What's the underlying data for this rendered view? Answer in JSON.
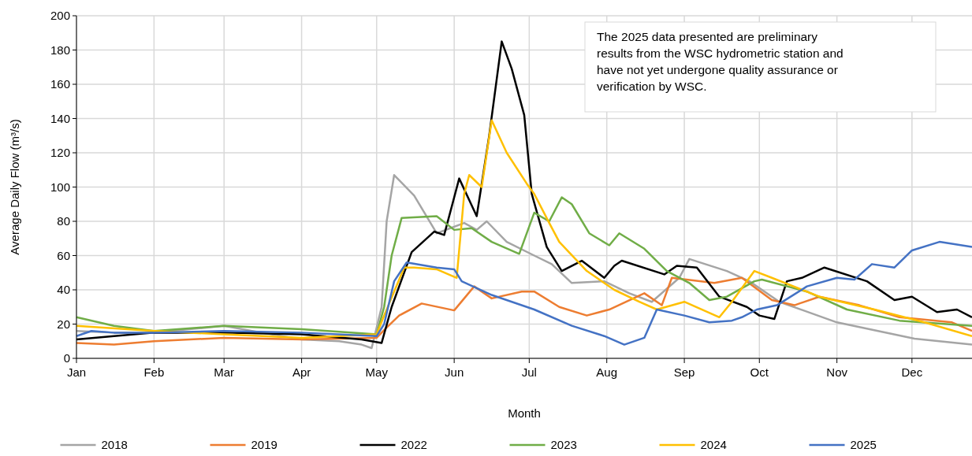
{
  "chart_data": {
    "type": "line",
    "xlabel": "Month",
    "ylabel": "Average Daily Flow (m³/s)",
    "xlim": [
      "--01-01",
      "--12-25"
    ],
    "ylim": [
      0,
      200
    ],
    "xticks": [
      {
        "value": "--01-01",
        "label": "Jan"
      },
      {
        "value": "--02-01",
        "label": "Feb"
      },
      {
        "value": "--03-01",
        "label": "Mar"
      },
      {
        "value": "--04-01",
        "label": "Apr"
      },
      {
        "value": "--05-01",
        "label": "May"
      },
      {
        "value": "--06-01",
        "label": "Jun"
      },
      {
        "value": "--07-01",
        "label": "Jul"
      },
      {
        "value": "--08-01",
        "label": "Aug"
      },
      {
        "value": "--09-01",
        "label": "Sep"
      },
      {
        "value": "--10-01",
        "label": "Oct"
      },
      {
        "value": "--11-01",
        "label": "Nov"
      },
      {
        "value": "--12-01",
        "label": "Dec"
      }
    ],
    "yticks": [
      0,
      20,
      40,
      60,
      80,
      100,
      120,
      140,
      160,
      180,
      200
    ],
    "grid": true,
    "legend": "bottom",
    "marker": "none",
    "line_style": "solid",
    "annotations": [
      "The 2025 data presented are preliminary results from the WSC hydrometric station and have not yet undergone quality assurance or verification by WSC."
    ],
    "series": [
      {
        "name": "2018",
        "color": "#a5a5a5",
        "x": [
          "--01-01",
          "--01-16",
          "--02-01",
          "--02-15",
          "--03-01",
          "--03-16",
          "--04-01",
          "--04-16",
          "--04-25",
          "--04-29",
          "--05-03",
          "--05-05",
          "--05-08",
          "--05-16",
          "--05-25",
          "--06-05",
          "--06-10",
          "--06-14",
          "--06-22",
          "--07-03",
          "--07-10",
          "--07-18",
          "--07-31",
          "--08-10",
          "--08-19",
          "--08-30",
          "--09-03",
          "--09-18",
          "--09-27",
          "--10-09",
          "--11-01",
          "--12-02",
          "--12-25"
        ],
        "values": [
          16,
          15,
          15,
          17,
          19,
          15,
          11,
          10,
          8,
          6,
          30,
          80,
          107,
          95,
          73,
          79,
          75,
          80,
          68,
          60,
          55,
          44,
          45,
          38,
          33,
          47,
          58,
          51,
          45,
          33,
          21,
          11.5,
          8
        ]
      },
      {
        "name": "2019",
        "color": "#ed7d31",
        "x": [
          "--01-01",
          "--01-16",
          "--02-01",
          "--03-01",
          "--04-01",
          "--05-01",
          "--05-05",
          "--05-10",
          "--05-19",
          "--06-01",
          "--06-09",
          "--06-16",
          "--06-28",
          "--07-03",
          "--07-13",
          "--07-24",
          "--08-02",
          "--08-16",
          "--08-23",
          "--08-27",
          "--09-13",
          "--09-24",
          "--10-06",
          "--10-15",
          "--10-25",
          "--11-10",
          "--11-26",
          "--12-17",
          "--12-25"
        ],
        "values": [
          9,
          8,
          10,
          12,
          11,
          12,
          18,
          25,
          32,
          28,
          42,
          35,
          39,
          39,
          30,
          25,
          28.5,
          38,
          31,
          47,
          44,
          47,
          34,
          31,
          36,
          31,
          24,
          21,
          16
        ]
      },
      {
        "name": "2022",
        "color": "#000000",
        "x": [
          "--01-01",
          "--01-16",
          "--02-01",
          "--03-01",
          "--04-01",
          "--04-25",
          "--05-03",
          "--05-07",
          "--05-15",
          "--05-24",
          "--05-28",
          "--06-03",
          "--06-10",
          "--06-15",
          "--06-20",
          "--06-24",
          "--06-29",
          "--07-02",
          "--07-08",
          "--07-14",
          "--07-22",
          "--07-31",
          "--08-04",
          "--08-07",
          "--08-24",
          "--08-29",
          "--09-06",
          "--09-15",
          "--09-26",
          "--10-01",
          "--10-07",
          "--10-12",
          "--10-18",
          "--10-27",
          "--11-13",
          "--11-24",
          "--12-01",
          "--12-11",
          "--12-19",
          "--12-25"
        ],
        "values": [
          11,
          13,
          15,
          15,
          14,
          11,
          9,
          30,
          62,
          74,
          72,
          105,
          83,
          130,
          185,
          169,
          142,
          96,
          65,
          51,
          57,
          47,
          54,
          57,
          49,
          54,
          53,
          36,
          30,
          25,
          23,
          45,
          47,
          53,
          45,
          34,
          36,
          27,
          28.5,
          24
        ]
      },
      {
        "name": "2023",
        "color": "#70ad47",
        "x": [
          "--01-01",
          "--01-16",
          "--02-01",
          "--03-01",
          "--04-01",
          "--05-01",
          "--05-04",
          "--05-07",
          "--05-11",
          "--05-25",
          "--06-01",
          "--06-08",
          "--06-16",
          "--06-27",
          "--07-03",
          "--07-09",
          "--07-14",
          "--07-18",
          "--07-25",
          "--08-02",
          "--08-06",
          "--08-16",
          "--08-25",
          "--09-03",
          "--09-11",
          "--09-18",
          "--09-29",
          "--10-02",
          "--10-20",
          "--11-05",
          "--11-26",
          "--12-25"
        ],
        "values": [
          24,
          19,
          16,
          19,
          17,
          14,
          30,
          60,
          82,
          83,
          75,
          76,
          68,
          61,
          85,
          80,
          94,
          90,
          73,
          66,
          73,
          64,
          51,
          44,
          34,
          36,
          45,
          46,
          39,
          28.5,
          22,
          19
        ]
      },
      {
        "name": "2024",
        "color": "#ffc000",
        "x": [
          "--01-01",
          "--02-01",
          "--03-01",
          "--04-01",
          "--05-01",
          "--05-04",
          "--05-12",
          "--05-16",
          "--05-25",
          "--06-02",
          "--06-05",
          "--06-07",
          "--06-12",
          "--06-16",
          "--06-22",
          "--06-30",
          "--07-03",
          "--07-09",
          "--07-13",
          "--07-24",
          "--08-04",
          "--08-14",
          "--08-21",
          "--09-01",
          "--09-15",
          "--09-20",
          "--09-29",
          "--10-06",
          "--10-25",
          "--11-16",
          "--12-06",
          "--12-25"
        ],
        "values": [
          19,
          16,
          14,
          12,
          14,
          25,
          53,
          53,
          52,
          47,
          96,
          107,
          100,
          139,
          120,
          102,
          96,
          79,
          68,
          51,
          40,
          33,
          28.5,
          33,
          24,
          33,
          51,
          47,
          36,
          28.5,
          21,
          13
        ]
      },
      {
        "name": "2025",
        "color": "#4472c4",
        "x": [
          "--01-01",
          "--01-07",
          "--01-16",
          "--02-01",
          "--03-01",
          "--04-01",
          "--05-01",
          "--05-04",
          "--05-08",
          "--05-13",
          "--05-25",
          "--06-01",
          "--06-04",
          "--06-16",
          "--07-03",
          "--07-18",
          "--07-31",
          "--08-08",
          "--08-16",
          "--08-21",
          "--09-01",
          "--09-11",
          "--09-20",
          "--09-24",
          "--09-30",
          "--10-08",
          "--10-20",
          "--11-01",
          "--11-08",
          "--11-15",
          "--11-24",
          "--12-01",
          "--12-12",
          "--12-25"
        ],
        "values": [
          13,
          16,
          15,
          15,
          16,
          15,
          13,
          20,
          45,
          56,
          53,
          52,
          45,
          37,
          28.5,
          19,
          13,
          8,
          12,
          28.5,
          25,
          21,
          22,
          24,
          28.5,
          31,
          42,
          47,
          46,
          55,
          53,
          63,
          68,
          65
        ]
      }
    ]
  }
}
